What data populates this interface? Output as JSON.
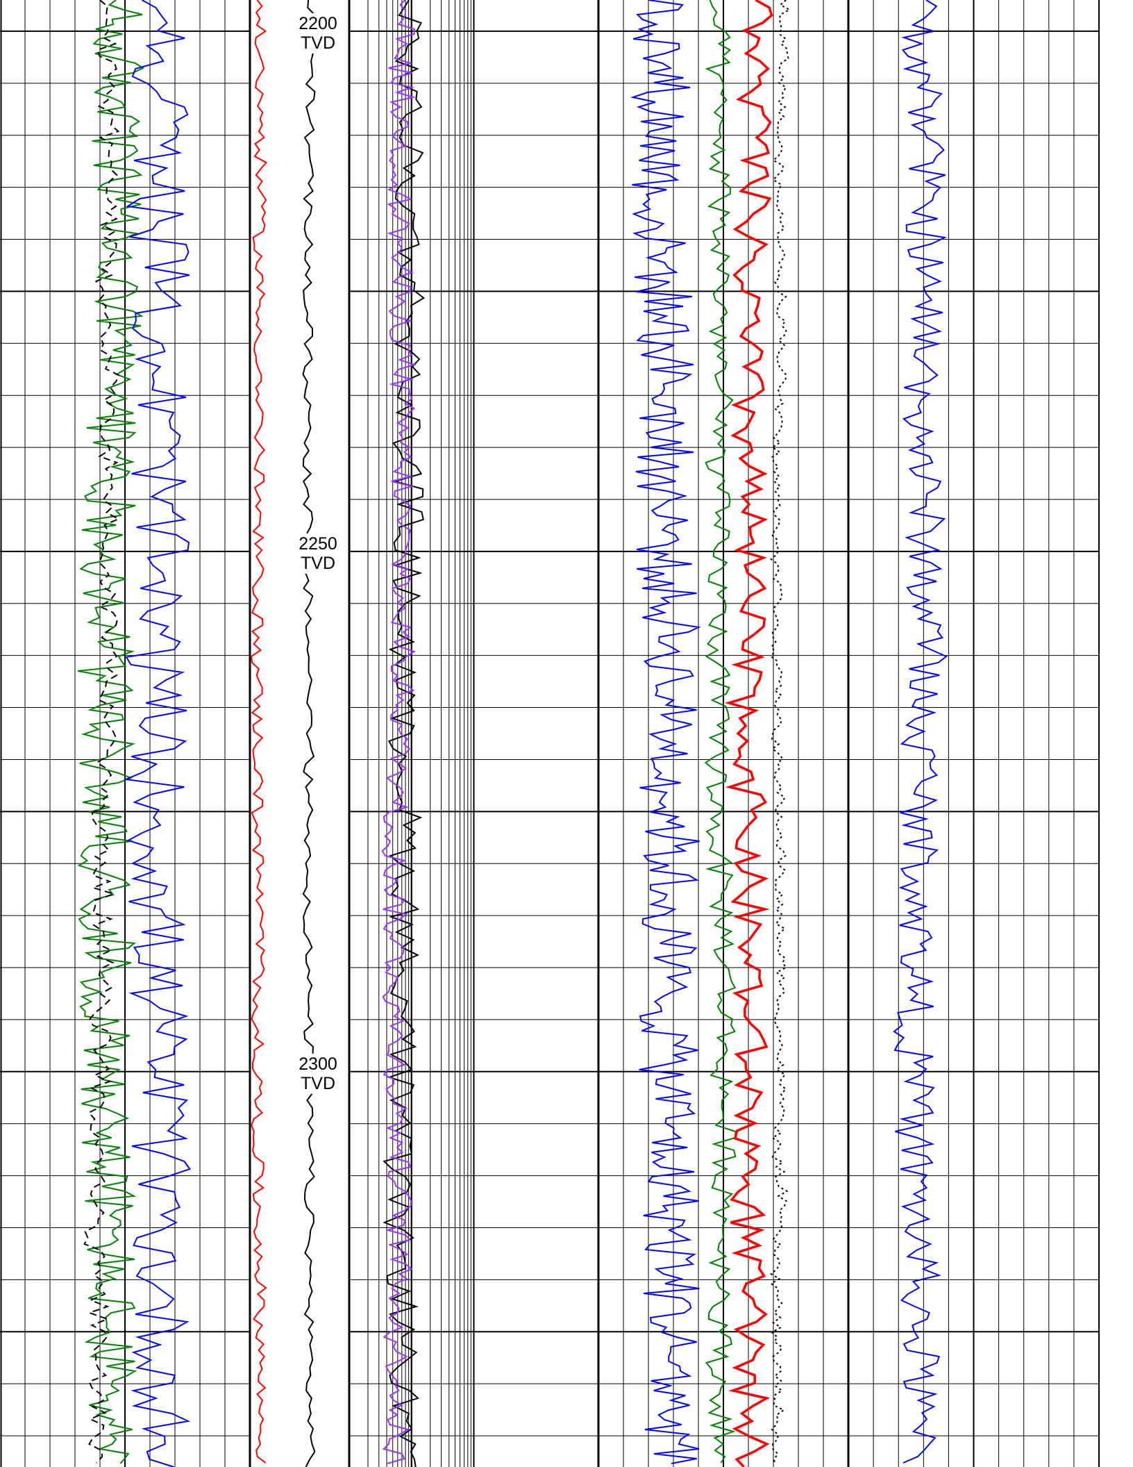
{
  "chart_data": {
    "type": "line",
    "depth_axis": {
      "reference": "TVD",
      "range": [
        2197,
        2338
      ],
      "direction": "down",
      "major_ticks": [
        {
          "depth": 2200,
          "label": "2200"
        },
        {
          "depth": 2250,
          "label": "2250"
        },
        {
          "depth": 2300,
          "label": "2300"
        }
      ],
      "unit_label": "TVD"
    },
    "tracks": [
      {
        "id": "track1",
        "grid": "linear",
        "divisions": 10,
        "series": [
          {
            "color": "#008000",
            "style": "solid",
            "baseline": 0.46,
            "amplitude": 0.11
          },
          {
            "color": "#000000",
            "style": "dashed",
            "baseline": 0.4,
            "amplitude": 0.04
          },
          {
            "color": "#0000ff",
            "style": "solid",
            "baseline": 0.66,
            "amplitude": 0.12
          }
        ]
      },
      {
        "id": "track2",
        "grid": "none",
        "series": [
          {
            "color": "#ff0000",
            "style": "solid",
            "baseline": 0.1,
            "amplitude": 0.06
          },
          {
            "color": "#000000",
            "style": "solid",
            "baseline": 0.62,
            "amplitude": 0.05
          }
        ]
      },
      {
        "id": "track3",
        "grid": "logarithmic",
        "cycles": 2,
        "series": [
          {
            "color": "#000000",
            "style": "solid",
            "baseline": 0.22,
            "amplitude": 0.06
          },
          {
            "color": "#9933ff",
            "style": "solid",
            "baseline": 0.22,
            "amplitude": 0.05
          }
        ]
      },
      {
        "id": "track4",
        "grid": "linear",
        "divisions": 10,
        "series": [
          {
            "color": "#0000ff",
            "style": "solid",
            "baseline": 0.26,
            "amplitude": 0.12
          },
          {
            "color": "#008000",
            "style": "solid",
            "baseline": 0.47,
            "amplitude": 0.05
          },
          {
            "color": "#ff0000",
            "style": "solid",
            "baseline": 0.63,
            "amplitude": 0.07
          },
          {
            "color": "#000000",
            "style": "dotted",
            "baseline": 0.75,
            "amplitude": 0.02
          }
        ]
      },
      {
        "id": "track5",
        "grid": "linear",
        "divisions": 10,
        "series": [
          {
            "color": "#0000ff",
            "style": "solid",
            "baseline": 0.28,
            "amplitude": 0.08
          }
        ]
      }
    ],
    "title": "",
    "legend": "none"
  }
}
